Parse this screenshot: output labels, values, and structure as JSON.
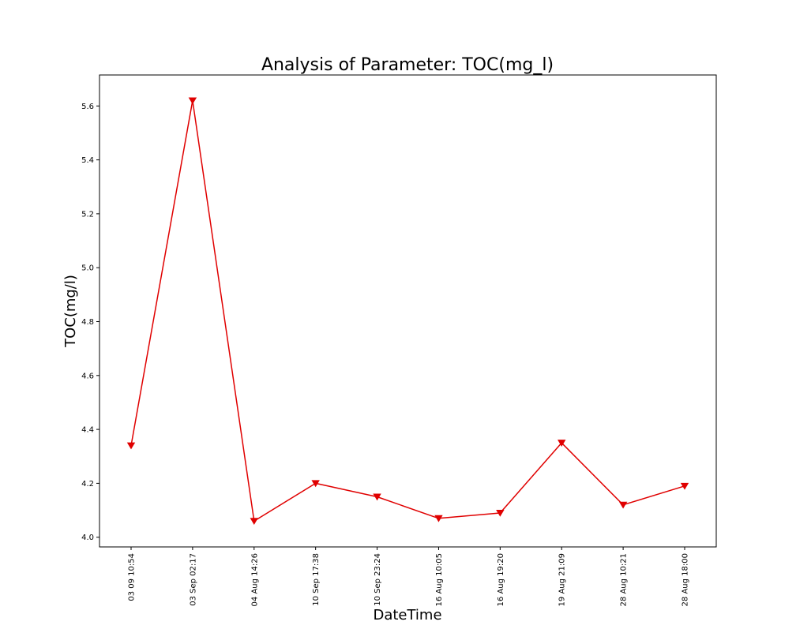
{
  "chart_data": {
    "type": "line",
    "title": "Analysis of Parameter: TOC(mg_l)",
    "xlabel": "DateTime",
    "ylabel": "TOC(mg/l)",
    "categories": [
      "03 09 10:54",
      "03 Sep 02:17",
      "04 Aug 14:26",
      "10 Sep 17:38",
      "10 Sep 23:24",
      "16 Aug 10:05",
      "16 Aug 19:20",
      "19 Aug 21:09",
      "28 Aug 10:21",
      "28 Aug 18:00"
    ],
    "series": [
      {
        "values": [
          4.34,
          5.62,
          4.06,
          4.2,
          4.15,
          4.07,
          4.09,
          4.35,
          4.12,
          4.19
        ],
        "color": "#e00000",
        "marker": "triangle-down"
      }
    ],
    "ylim": [
      3.964,
      5.715
    ],
    "yticks": [
      4.0,
      4.2,
      4.4,
      4.6,
      4.8,
      5.0,
      5.2,
      5.4,
      5.6
    ],
    "ytick_labels": [
      "4.0",
      "4.2",
      "4.4",
      "4.6",
      "4.8",
      "5.0",
      "5.2",
      "5.4",
      "5.6"
    ],
    "grid": false,
    "legend": "none"
  }
}
